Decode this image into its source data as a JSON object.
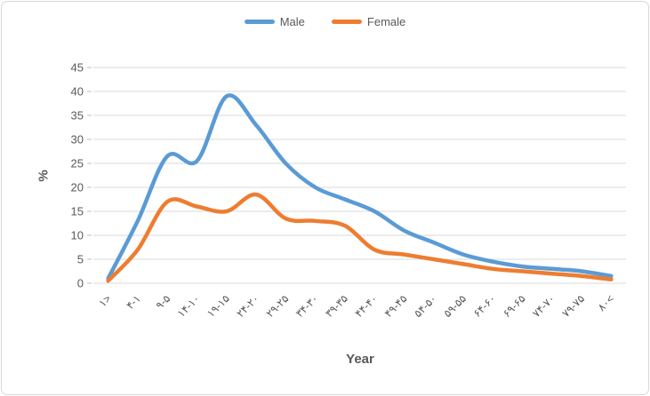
{
  "chart_data": {
    "type": "line",
    "smooth": true,
    "title": "",
    "xlabel": "Year",
    "ylabel": "%",
    "ylim": [
      0,
      45
    ],
    "y_tick_step": 5,
    "y_ticks": [
      0,
      5,
      10,
      15,
      20,
      25,
      30,
      35,
      40,
      45
    ],
    "grid": "horizontal",
    "legend_position": "top-center",
    "categories": [
      "۱>",
      "۴-۱",
      "۹-۵",
      "۱۴-۱۰",
      "۱۹-۱۵",
      "۲۴-۲۰",
      "۲۹-۲۵",
      "۳۴-۳۰",
      "۳۹-۳۵",
      "۴۴-۴۰",
      "۴۹-۴۵",
      "۵۴-۵۰",
      "۵۹-۵۵",
      "۶۴-۶۰",
      "۶۹-۶۵",
      "۷۴-۷۰",
      "۷۹-۷۵",
      "۸۰<"
    ],
    "series": [
      {
        "name": "Male",
        "color": "#5B9BD5",
        "values": [
          1,
          13,
          26.5,
          25.5,
          39,
          33,
          25,
          20,
          17.5,
          15,
          11,
          8.5,
          6,
          4.5,
          3.5,
          3,
          2.5,
          1.5
        ]
      },
      {
        "name": "Female",
        "color": "#ED7D31",
        "values": [
          0.5,
          7,
          17,
          16,
          15,
          18.5,
          13.5,
          13,
          12,
          7,
          6,
          5,
          4,
          3,
          2.5,
          2,
          1.5,
          0.8
        ]
      }
    ]
  },
  "styles": {
    "text_color": "#595959",
    "grid_color": "#d9d9d9",
    "tick_color": "#bfbfbf",
    "border_color": "#d9d9d9",
    "background": "#ffffff"
  }
}
